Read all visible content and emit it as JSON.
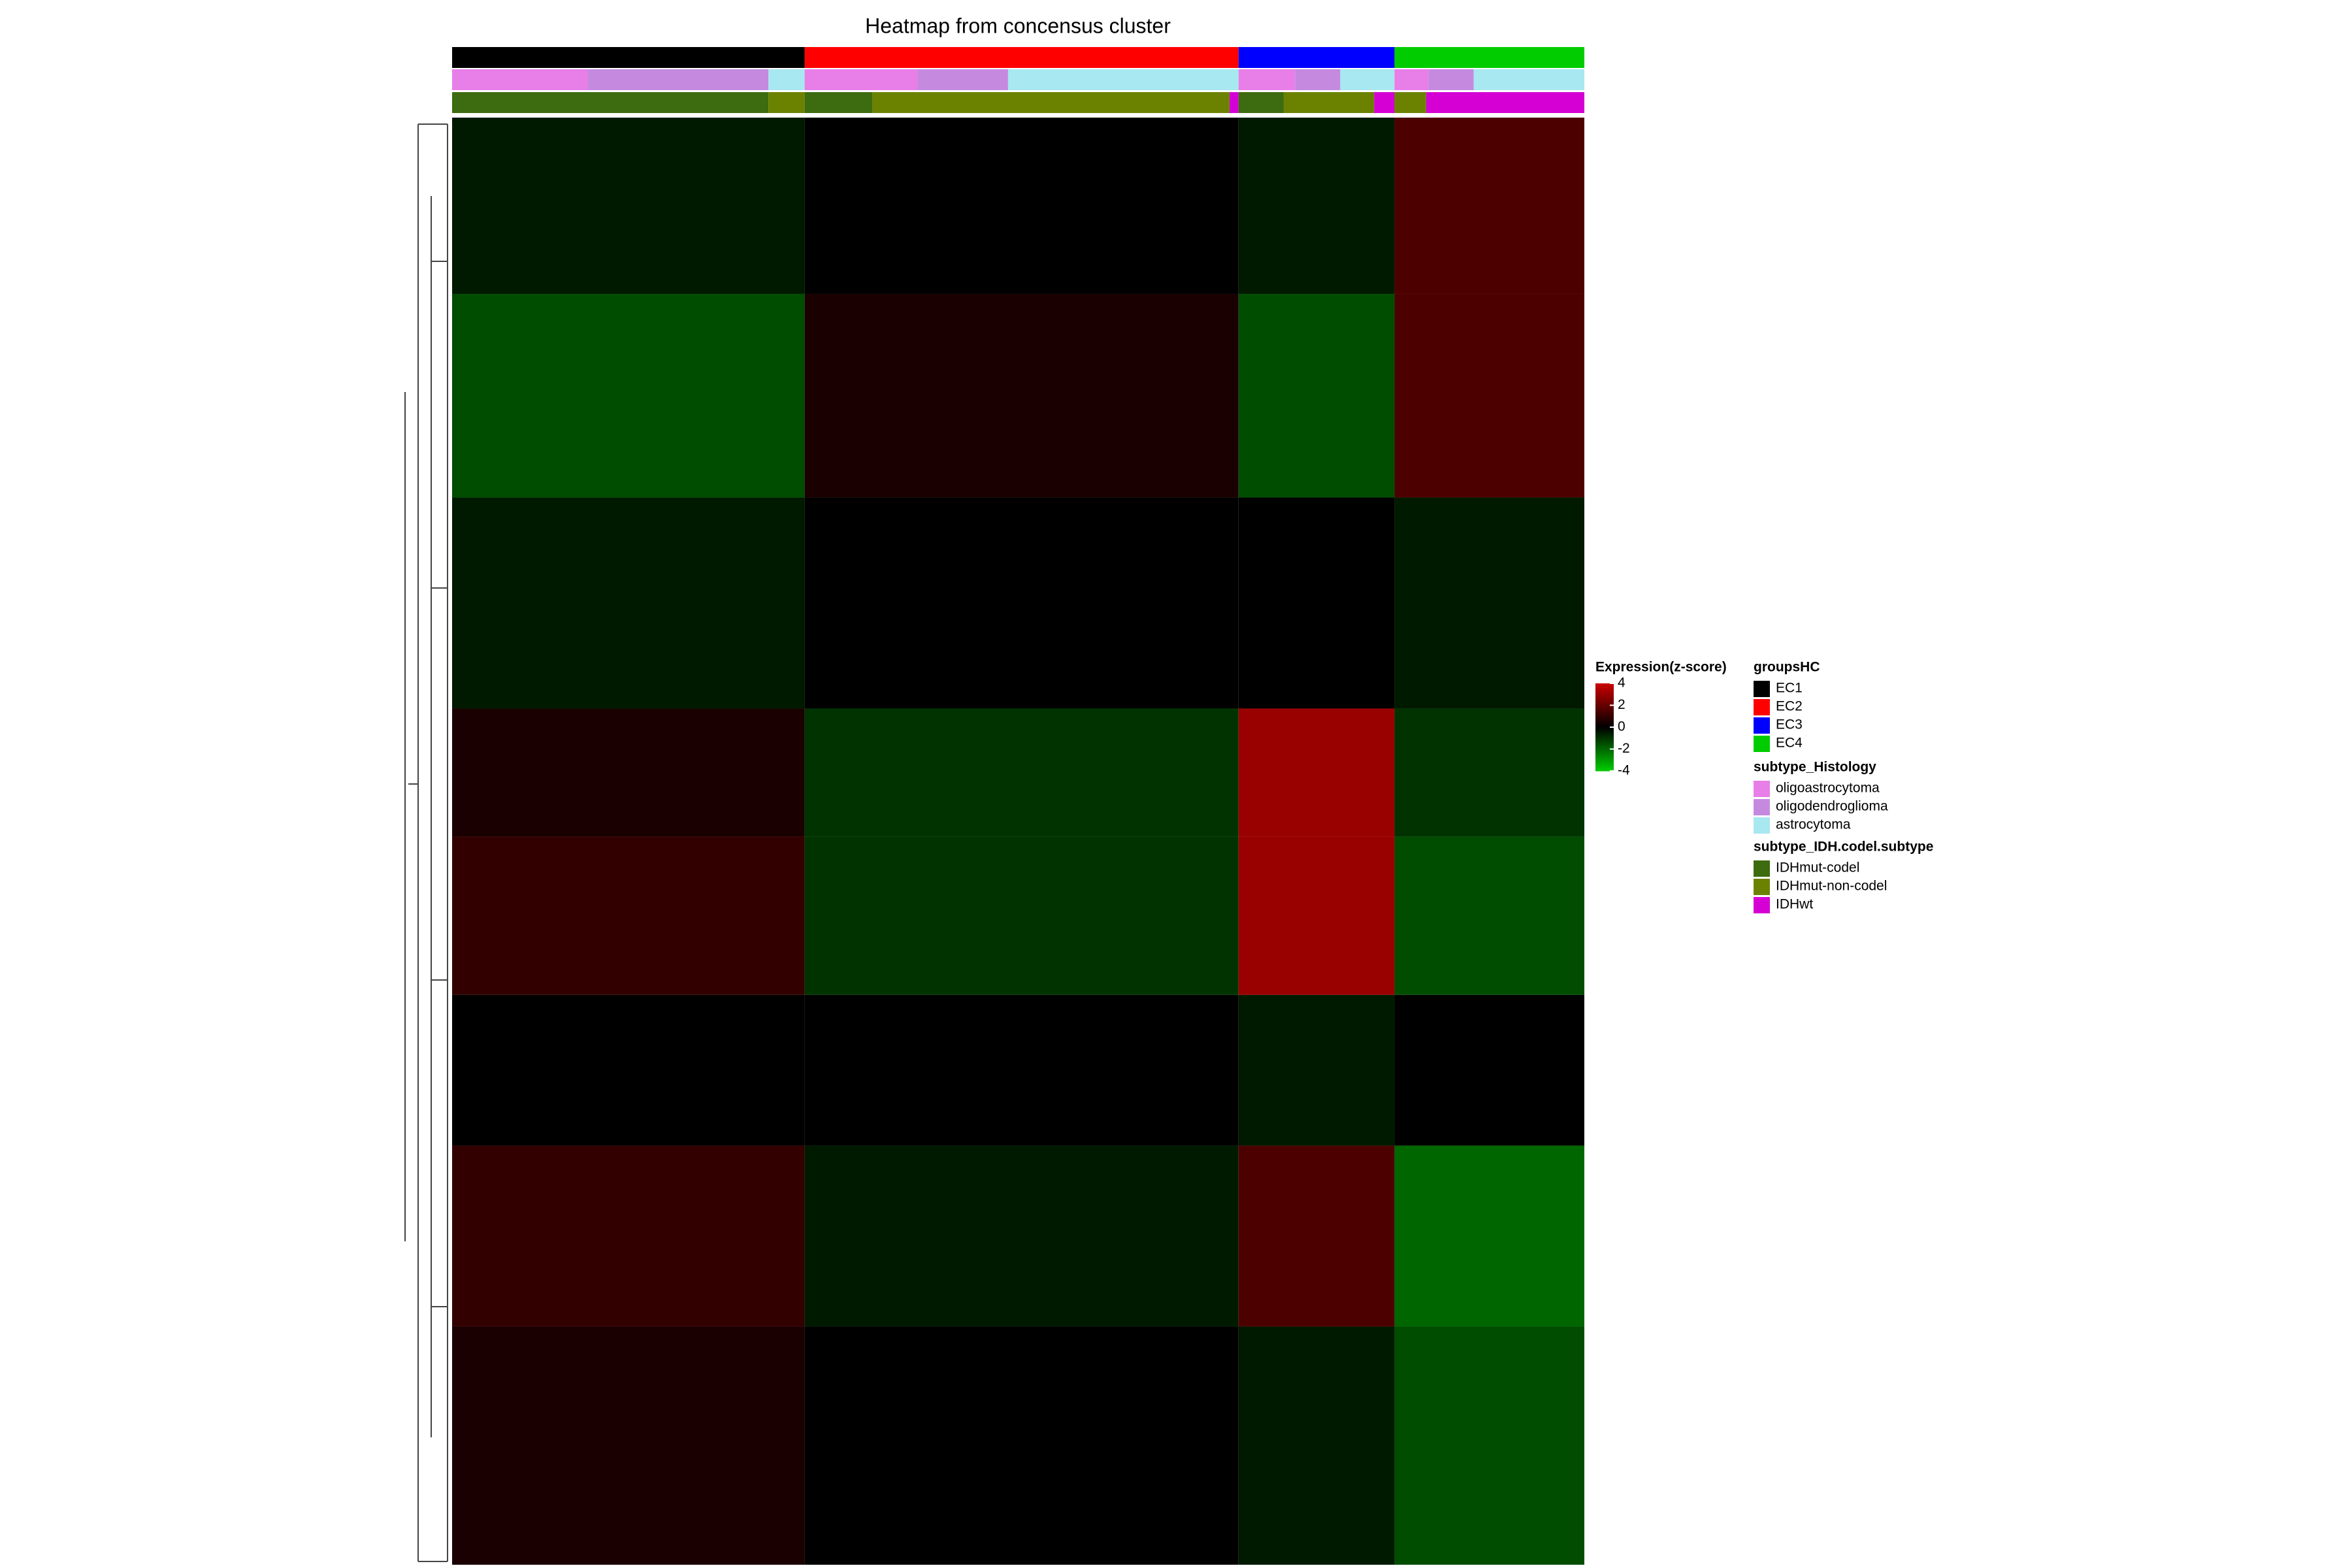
{
  "chart_data": {
    "type": "heatmap",
    "title": "Heatmap from concensus cluster",
    "colorbar": {
      "title": "Expression(z-score)",
      "ticks": [
        4,
        2,
        0,
        -2,
        -4
      ],
      "lim": [
        -4,
        4
      ],
      "colors": [
        "#00cc00",
        "#000000",
        "#cc0000"
      ]
    },
    "groups": {
      "title": "groupsHC",
      "names": [
        "EC1",
        "EC2",
        "EC3",
        "EC4"
      ],
      "colors": [
        "#000000",
        "#ff0000",
        "#0000ff",
        "#00cc00"
      ],
      "sizes": [
        156,
        192,
        69,
        84
      ]
    },
    "tracks": [
      {
        "title": "subtype_Histology",
        "names": [
          "oligoastrocytoma",
          "oligodendroglioma",
          "astrocytoma"
        ],
        "colors": [
          "#e87ee8",
          "#c58ae0",
          "#a8e8f0"
        ],
        "counts": [
          [
            60,
            80,
            16
          ],
          [
            50,
            40,
            102
          ],
          [
            25,
            20,
            24
          ],
          [
            15,
            20,
            49
          ]
        ]
      },
      {
        "title": "subtype_IDH.codel.subtype",
        "names": [
          "IDHmut-codel",
          "IDHmut-non-codel",
          "IDHwt"
        ],
        "colors": [
          "#3d6b0f",
          "#6b8200",
          "#d400d4"
        ],
        "counts": [
          [
            140,
            16,
            0
          ],
          [
            30,
            158,
            4
          ],
          [
            20,
            40,
            9
          ],
          [
            0,
            14,
            70
          ]
        ]
      }
    ],
    "rows": [
      {
        "size": 117,
        "values": [
          -0.5,
          0,
          -0.5,
          1.5
        ]
      },
      {
        "size": 135,
        "values": [
          -1.5,
          0.5,
          -1.5,
          1.5
        ]
      },
      {
        "size": 140,
        "values": [
          -0.5,
          0,
          0,
          -0.5
        ]
      },
      {
        "size": 85,
        "values": [
          0.5,
          -1,
          3,
          -1
        ]
      },
      {
        "size": 105,
        "values": [
          1,
          -1,
          3,
          -1.5
        ]
      },
      {
        "size": 100,
        "values": [
          0,
          0,
          -0.5,
          0
        ]
      },
      {
        "size": 120,
        "values": [
          1,
          -0.5,
          1.5,
          -2
        ]
      },
      {
        "size": 158,
        "values": [
          0.5,
          0,
          -0.5,
          -1.5
        ]
      }
    ]
  }
}
